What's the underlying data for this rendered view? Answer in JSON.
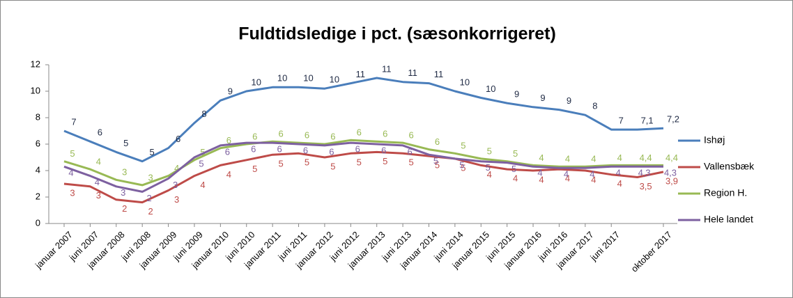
{
  "chart_data": {
    "type": "line",
    "title": "Fuldtidsledige i pct. (sæsonkorrigeret)",
    "categories": [
      "januar 2007",
      "juni 2007",
      "januar 2008",
      "juni 2008",
      "januar 2009",
      "juni 2009",
      "januar 2010",
      "juni 2010",
      "januar 2011",
      "juni 2011",
      "januar 2012",
      "juni 2012",
      "januar 2013",
      "juni 2013",
      "januar 2014",
      "juni 2014",
      "januar 2015",
      "juni 2015",
      "januar 2016",
      "juni 2016",
      "januar 2017",
      "juni 2017",
      null,
      "oktober 2017"
    ],
    "series": [
      {
        "name": "Ishøj",
        "color": "#4a7ebb",
        "values": [
          7.0,
          6.2,
          5.4,
          4.7,
          5.7,
          7.6,
          9.3,
          10.0,
          10.3,
          10.3,
          10.2,
          10.6,
          11.0,
          10.7,
          10.6,
          10.0,
          9.5,
          9.1,
          8.8,
          8.6,
          8.2,
          7.1,
          7.1,
          7.2
        ],
        "value_labels": [
          "7",
          "6",
          "5",
          "5",
          "6",
          "8",
          "9",
          "10",
          "10",
          "10",
          "10",
          "11",
          "11",
          "11",
          "11",
          "10",
          "10",
          "9",
          "9",
          "9",
          "8",
          "7",
          "7,1",
          "7,2"
        ]
      },
      {
        "name": "Vallensbæk",
        "color": "#be4b48",
        "values": [
          3.0,
          2.8,
          1.8,
          1.6,
          2.5,
          3.6,
          4.4,
          4.8,
          5.2,
          5.3,
          5.0,
          5.3,
          5.4,
          5.3,
          5.1,
          4.9,
          4.4,
          4.1,
          4.0,
          4.1,
          4.0,
          3.7,
          3.5,
          3.9
        ],
        "value_labels": [
          "3",
          "3",
          "2",
          "2",
          "3",
          "4",
          "4",
          "5",
          "5",
          "5",
          "5",
          "5",
          "5",
          "5",
          "5",
          "5",
          "4",
          "4",
          "4",
          "4",
          "4",
          "4",
          "3,5",
          "3,9"
        ]
      },
      {
        "name": "Region H.",
        "color": "#98b954",
        "values": [
          4.7,
          4.1,
          3.3,
          2.9,
          3.6,
          4.8,
          5.7,
          6.0,
          6.2,
          6.1,
          6.0,
          6.3,
          6.2,
          6.1,
          5.6,
          5.3,
          4.9,
          4.7,
          4.4,
          4.3,
          4.3,
          4.4,
          4.4,
          4.4
        ],
        "value_labels": [
          "5",
          "4",
          "3",
          "3",
          "4",
          "5",
          "6",
          "6",
          "6",
          "6",
          "6",
          "6",
          "6",
          "6",
          "6",
          "5",
          "5",
          "5",
          "4",
          "4",
          "4",
          "4",
          "4,4",
          "4,4"
        ]
      },
      {
        "name": "Hele landet",
        "color": "#7d60a0",
        "values": [
          4.3,
          3.6,
          2.8,
          2.4,
          3.4,
          5.0,
          5.9,
          6.1,
          6.1,
          6.0,
          5.9,
          6.1,
          6.0,
          5.9,
          5.2,
          4.9,
          4.7,
          4.6,
          4.3,
          4.2,
          4.2,
          4.3,
          4.3,
          4.3
        ],
        "value_labels": [
          "4",
          "4",
          "3",
          "2",
          "3",
          "5",
          "6",
          "6",
          "6",
          "6",
          "6",
          "6",
          "6",
          "6",
          "5",
          "5",
          "5",
          "5",
          "4",
          "4",
          "4",
          "4",
          "4,3",
          "4,3"
        ]
      }
    ],
    "ylim": [
      0,
      12
    ],
    "yticks": [
      0,
      2,
      4,
      6,
      8,
      10,
      12
    ],
    "grid": false,
    "legend": "right"
  }
}
